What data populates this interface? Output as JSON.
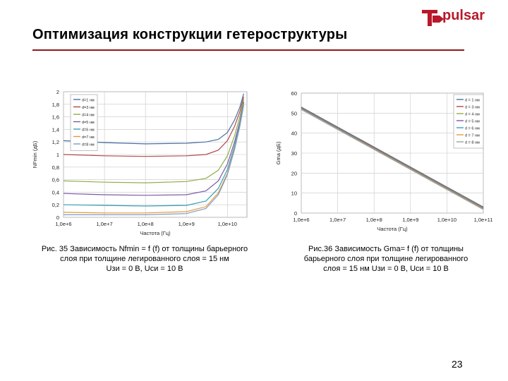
{
  "slide": {
    "title": "Оптимизация конструкции гетероструктуры",
    "logo_text": "pulsar",
    "page_number": "23",
    "caption_left": {
      "line1": "Рис. 35 Зависимость Nfmin = f (f) от толщины барьерного",
      "line2": "слоя при толщине легированного слоя = 15 нм",
      "line3": "Uзи = 0 В, Uси = 10 В"
    },
    "caption_right": {
      "line1": "Рис.36 Зависимость Gma= f (f) от толщины",
      "line2": "барьерного слоя при толщине легированного",
      "line3": "слоя = 15 нм Uзи = 0 В, Uси = 10 В"
    }
  },
  "colors": {
    "accent_red": "#b8182a",
    "rule": "#8b1a1a",
    "grid": "#c8c8c8"
  },
  "chart_data": [
    {
      "type": "line",
      "title": "",
      "xlabel": "Частота (Гц)",
      "ylabel": "NFmin (дБ)",
      "x_scale": "log",
      "xlim": [
        1000000,
        30000000000
      ],
      "ylim": [
        0,
        2
      ],
      "grid": true,
      "legend_position": "top-left",
      "x_tick_labels": [
        "1,0e+6",
        "1,0e+7",
        "1,0e+8",
        "1,0e+9",
        "1,0e+10"
      ],
      "x_tick_values": [
        1000000,
        10000000,
        100000000,
        1000000000,
        10000000000
      ],
      "y_tick_labels": [
        "0",
        "0,2",
        "0,4",
        "0,6",
        "0,8",
        "1",
        "1,2",
        "1,4",
        "1,6",
        "1,8",
        "2"
      ],
      "y_tick_values": [
        0,
        0.2,
        0.4,
        0.6,
        0.8,
        1.0,
        1.2,
        1.4,
        1.6,
        1.8,
        2.0
      ],
      "x": [
        1000000,
        10000000,
        100000000,
        1000000000,
        3000000000,
        6000000000,
        10000000000,
        15000000000,
        20000000000,
        25000000000
      ],
      "series": [
        {
          "name": "d=1 нм",
          "color": "#4a6fa5",
          "values": [
            1.22,
            1.19,
            1.17,
            1.18,
            1.2,
            1.24,
            1.35,
            1.55,
            1.75,
            1.97
          ]
        },
        {
          "name": "d=3 нм",
          "color": "#b04a48",
          "values": [
            1.0,
            0.98,
            0.97,
            0.98,
            1.0,
            1.07,
            1.22,
            1.45,
            1.68,
            1.92
          ]
        },
        {
          "name": "d=4 нм",
          "color": "#8fae4a",
          "values": [
            0.58,
            0.56,
            0.55,
            0.57,
            0.62,
            0.75,
            0.98,
            1.3,
            1.6,
            1.88
          ]
        },
        {
          "name": "d=5 нм",
          "color": "#7a5aa6",
          "values": [
            0.38,
            0.36,
            0.35,
            0.36,
            0.42,
            0.58,
            0.85,
            1.2,
            1.52,
            1.84
          ]
        },
        {
          "name": "d=6 нм",
          "color": "#3aa0b8",
          "values": [
            0.2,
            0.19,
            0.18,
            0.19,
            0.26,
            0.46,
            0.76,
            1.14,
            1.48,
            1.82
          ]
        },
        {
          "name": "d=7 нм",
          "color": "#e59a3a",
          "values": [
            0.08,
            0.07,
            0.07,
            0.09,
            0.17,
            0.39,
            0.7,
            1.1,
            1.45,
            1.8
          ]
        },
        {
          "name": "d=8 нм",
          "color": "#7c9cc8",
          "values": [
            0.04,
            0.04,
            0.04,
            0.06,
            0.14,
            0.36,
            0.68,
            1.08,
            1.44,
            1.78
          ]
        }
      ]
    },
    {
      "type": "line",
      "title": "",
      "xlabel": "Частота (Гц)",
      "ylabel": "Gma (дБ)",
      "x_scale": "log",
      "xlim": [
        1000000,
        100000000000
      ],
      "ylim": [
        0,
        60
      ],
      "grid": true,
      "legend_position": "top-right",
      "x_tick_labels": [
        "1,0e+6",
        "1,0e+7",
        "1,0e+8",
        "1,0e+9",
        "1,0e+10",
        "1,0e+11"
      ],
      "x_tick_values": [
        1000000,
        10000000,
        100000000,
        1000000000,
        10000000000,
        100000000000
      ],
      "y_tick_labels": [
        "0",
        "10",
        "20",
        "30",
        "40",
        "50",
        "60"
      ],
      "y_tick_values": [
        0,
        10,
        20,
        30,
        40,
        50,
        60
      ],
      "x": [
        1000000,
        100000000000
      ],
      "series": [
        {
          "name": "d = 1 нм",
          "color": "#4a6fa5",
          "values": [
            53,
            3
          ]
        },
        {
          "name": "d = 3 нм",
          "color": "#b04a48",
          "values": [
            52.8,
            2.8
          ]
        },
        {
          "name": "d = 4 нм",
          "color": "#8fae4a",
          "values": [
            52.6,
            2.6
          ]
        },
        {
          "name": "d = 5 нм",
          "color": "#7a5aa6",
          "values": [
            52.4,
            2.4
          ]
        },
        {
          "name": "d = 6 нм",
          "color": "#3aa0b8",
          "values": [
            52.2,
            2.2
          ]
        },
        {
          "name": "d = 7 нм",
          "color": "#e59a3a",
          "values": [
            52.0,
            2.0
          ]
        },
        {
          "name": "d = 8 нм",
          "color": "#a0a0a0",
          "values": [
            51.8,
            1.8
          ]
        }
      ]
    }
  ]
}
